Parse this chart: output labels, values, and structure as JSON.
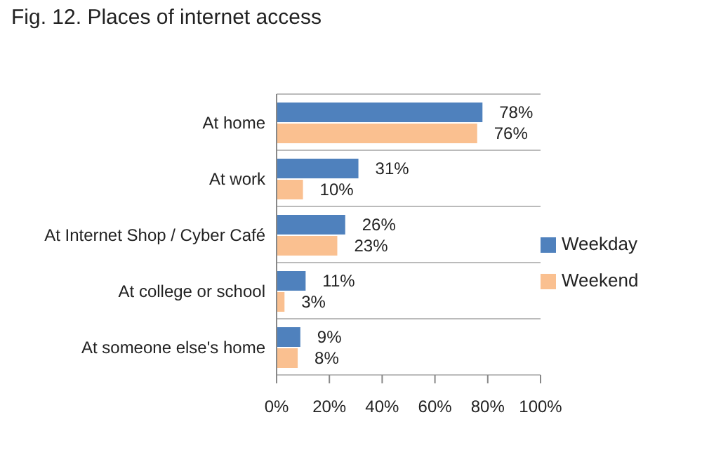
{
  "chart_data": {
    "type": "bar",
    "orientation": "horizontal",
    "title": "Fig. 12. Places of internet access",
    "categories": [
      "At home",
      "At work",
      "At Internet Shop / Cyber Café",
      "At college or school",
      "At someone else's home"
    ],
    "series": [
      {
        "name": "Weekday",
        "color": "#4f81bd",
        "values": [
          78,
          31,
          26,
          11,
          9
        ],
        "value_labels": [
          "78%",
          "31%",
          "26%",
          "11%",
          "9%"
        ]
      },
      {
        "name": "Weekend",
        "color": "#fac090",
        "values": [
          76,
          10,
          23,
          3,
          8
        ],
        "value_labels": [
          "76%",
          "10%",
          "23%",
          "3%",
          "8%"
        ]
      }
    ],
    "xlim": [
      0,
      100
    ],
    "xticks": [
      {
        "value": 0,
        "label": "0%"
      },
      {
        "value": 20,
        "label": "20%"
      },
      {
        "value": 40,
        "label": "40%"
      },
      {
        "value": 60,
        "label": "60%"
      },
      {
        "value": 80,
        "label": "80%"
      },
      {
        "value": 100,
        "label": "100%"
      }
    ],
    "grid": "y",
    "legend": "right"
  }
}
